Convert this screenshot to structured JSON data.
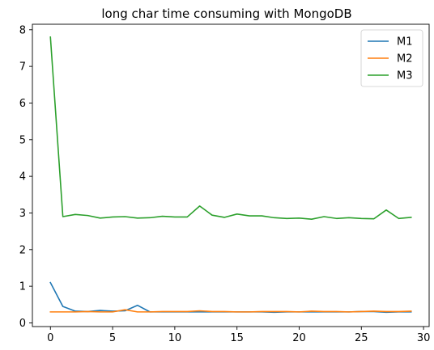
{
  "chart_data": {
    "type": "line",
    "title": "long char time consuming with MongoDB",
    "xlabel": "",
    "ylabel": "",
    "xlim": [
      -1.45,
      30.45
    ],
    "ylim": [
      -0.1,
      8.15
    ],
    "xticks": [
      0,
      5,
      10,
      15,
      20,
      25,
      30
    ],
    "yticks": [
      0,
      1,
      2,
      3,
      4,
      5,
      6,
      7,
      8
    ],
    "grid": false,
    "legend_position": "top-right",
    "x": [
      0,
      1,
      2,
      3,
      4,
      5,
      6,
      7,
      8,
      9,
      10,
      11,
      12,
      13,
      14,
      15,
      16,
      17,
      18,
      19,
      20,
      21,
      22,
      23,
      24,
      25,
      26,
      27,
      28,
      29
    ],
    "series": [
      {
        "name": "M1",
        "color": "#1f77b4",
        "values": [
          1.1,
          0.45,
          0.32,
          0.31,
          0.34,
          0.32,
          0.33,
          0.48,
          0.3,
          0.3,
          0.3,
          0.3,
          0.3,
          0.3,
          0.3,
          0.3,
          0.3,
          0.3,
          0.29,
          0.3,
          0.3,
          0.3,
          0.3,
          0.3,
          0.3,
          0.31,
          0.31,
          0.29,
          0.3,
          0.3
        ]
      },
      {
        "name": "M2",
        "color": "#ff7f0e",
        "values": [
          0.3,
          0.3,
          0.3,
          0.31,
          0.3,
          0.3,
          0.36,
          0.3,
          0.3,
          0.31,
          0.31,
          0.31,
          0.33,
          0.31,
          0.31,
          0.3,
          0.3,
          0.31,
          0.31,
          0.31,
          0.3,
          0.32,
          0.31,
          0.31,
          0.3,
          0.31,
          0.32,
          0.31,
          0.31,
          0.32
        ]
      },
      {
        "name": "M3",
        "color": "#2ca02c",
        "values": [
          7.8,
          2.9,
          2.96,
          2.93,
          2.86,
          2.89,
          2.9,
          2.86,
          2.87,
          2.91,
          2.89,
          2.89,
          3.19,
          2.94,
          2.88,
          2.97,
          2.92,
          2.92,
          2.87,
          2.85,
          2.86,
          2.83,
          2.9,
          2.85,
          2.87,
          2.85,
          2.84,
          3.08,
          2.85,
          2.88
        ]
      }
    ]
  }
}
